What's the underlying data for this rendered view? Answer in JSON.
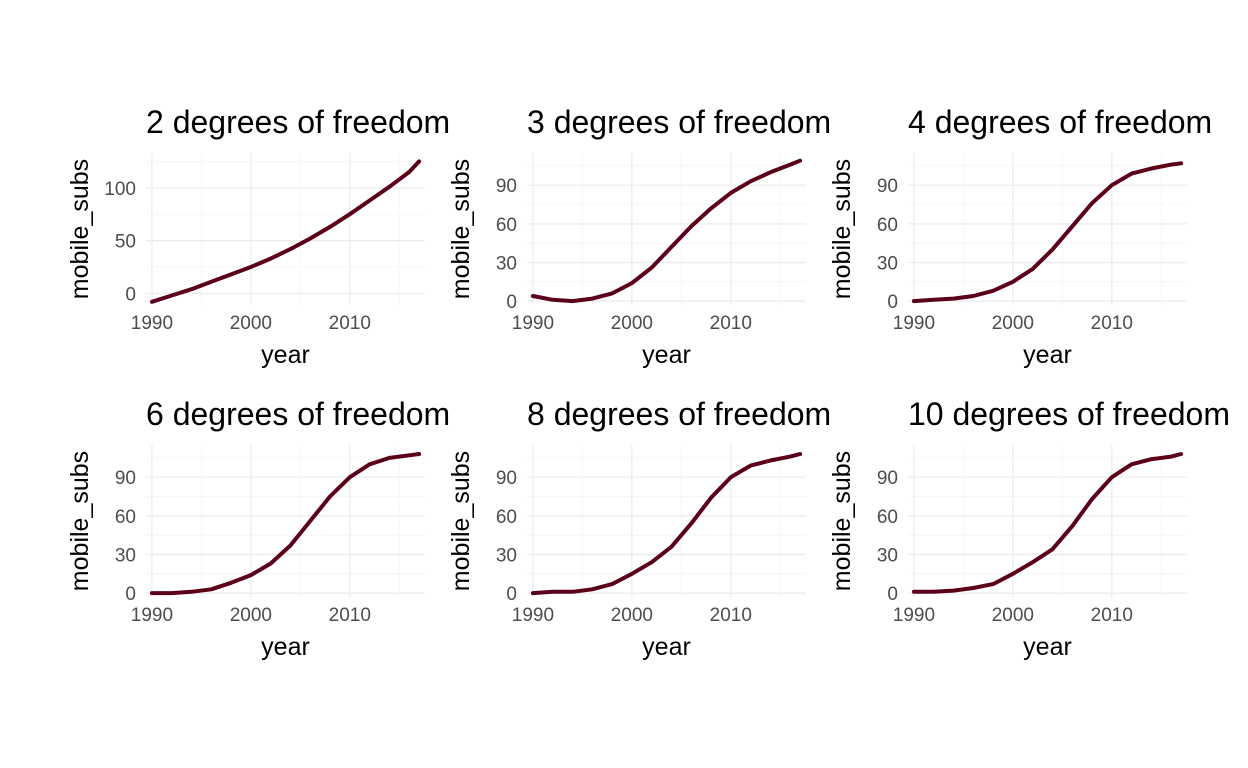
{
  "line_color": "#5c0019",
  "chart_data": [
    {
      "type": "line",
      "title": "2 degrees of freedom",
      "xlabel": "year",
      "ylabel": "mobile_subs",
      "xlim": [
        1989.4,
        2017.6
      ],
      "ylim": [
        -11,
        133
      ],
      "xticks": [
        1990,
        2000,
        2010
      ],
      "yticks": [
        0,
        50,
        100
      ],
      "grid": true,
      "series": [
        {
          "x": [
            1990,
            1992,
            1994,
            1996,
            1998,
            2000,
            2002,
            2004,
            2006,
            2008,
            2010,
            2012,
            2014,
            2016,
            2017
          ],
          "y": [
            -8,
            -2,
            4,
            11,
            18,
            25,
            33,
            42,
            52,
            63,
            75,
            88,
            101,
            115,
            125
          ]
        }
      ]
    },
    {
      "type": "line",
      "title": "3 degrees of freedom",
      "xlabel": "year",
      "ylabel": "mobile_subs",
      "xlim": [
        1989.4,
        2017.6
      ],
      "ylim": [
        -3,
        115
      ],
      "xticks": [
        1990,
        2000,
        2010
      ],
      "yticks": [
        0,
        30,
        60,
        90
      ],
      "grid": true,
      "series": [
        {
          "x": [
            1990,
            1992,
            1994,
            1996,
            1998,
            2000,
            2002,
            2004,
            2006,
            2008,
            2010,
            2012,
            2014,
            2016,
            2017
          ],
          "y": [
            4,
            1,
            0,
            2,
            6,
            14,
            26,
            42,
            58,
            72,
            84,
            93,
            100,
            106,
            109
          ]
        }
      ]
    },
    {
      "type": "line",
      "title": "4 degrees of freedom",
      "xlabel": "year",
      "ylabel": "mobile_subs",
      "xlim": [
        1989.4,
        2017.6
      ],
      "ylim": [
        -3,
        115
      ],
      "xticks": [
        1990,
        2000,
        2010
      ],
      "yticks": [
        0,
        30,
        60,
        90
      ],
      "grid": true,
      "series": [
        {
          "x": [
            1990,
            1992,
            1994,
            1996,
            1998,
            2000,
            2002,
            2004,
            2006,
            2008,
            2010,
            2012,
            2014,
            2016,
            2017
          ],
          "y": [
            0,
            1,
            2,
            4,
            8,
            15,
            25,
            40,
            58,
            76,
            90,
            99,
            103,
            106,
            107
          ]
        }
      ]
    },
    {
      "type": "line",
      "title": "6 degrees of freedom",
      "xlabel": "year",
      "ylabel": "mobile_subs",
      "xlim": [
        1989.4,
        2017.6
      ],
      "ylim": [
        -3,
        115
      ],
      "xticks": [
        1990,
        2000,
        2010
      ],
      "yticks": [
        0,
        30,
        60,
        90
      ],
      "grid": true,
      "series": [
        {
          "x": [
            1990,
            1992,
            1994,
            1996,
            1998,
            2000,
            2002,
            2004,
            2006,
            2008,
            2010,
            2012,
            2014,
            2016,
            2017
          ],
          "y": [
            0,
            0,
            1,
            3,
            8,
            14,
            23,
            37,
            56,
            75,
            90,
            100,
            105,
            107,
            108
          ]
        }
      ]
    },
    {
      "type": "line",
      "title": "8 degrees of freedom",
      "xlabel": "year",
      "ylabel": "mobile_subs",
      "xlim": [
        1989.4,
        2017.6
      ],
      "ylim": [
        -3,
        115
      ],
      "xticks": [
        1990,
        2000,
        2010
      ],
      "yticks": [
        0,
        30,
        60,
        90
      ],
      "grid": true,
      "series": [
        {
          "x": [
            1990,
            1992,
            1994,
            1996,
            1998,
            2000,
            2002,
            2004,
            2006,
            2008,
            2010,
            2012,
            2014,
            2016,
            2017
          ],
          "y": [
            0,
            1,
            1,
            3,
            7,
            15,
            24,
            36,
            54,
            74,
            90,
            99,
            103,
            106,
            108
          ]
        }
      ]
    },
    {
      "type": "line",
      "title": "10 degrees of freedom",
      "xlabel": "year",
      "ylabel": "mobile_subs",
      "xlim": [
        1989.4,
        2017.6
      ],
      "ylim": [
        -3,
        115
      ],
      "xticks": [
        1990,
        2000,
        2010
      ],
      "yticks": [
        0,
        30,
        60,
        90
      ],
      "grid": true,
      "series": [
        {
          "x": [
            1990,
            1992,
            1994,
            1996,
            1998,
            2000,
            2002,
            2004,
            2006,
            2008,
            2010,
            2012,
            2014,
            2016,
            2017
          ],
          "y": [
            1,
            1,
            2,
            4,
            7,
            15,
            24,
            34,
            52,
            73,
            90,
            100,
            104,
            106,
            108
          ]
        }
      ]
    }
  ]
}
